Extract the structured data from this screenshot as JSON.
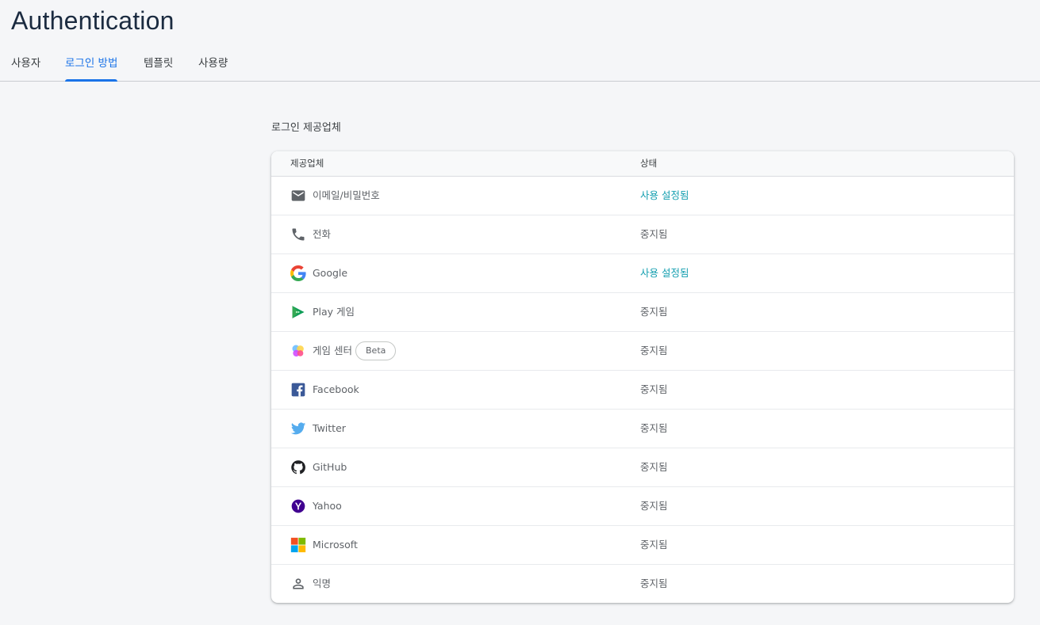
{
  "page": {
    "title": "Authentication"
  },
  "tabs": [
    {
      "label": "사용자",
      "active": false
    },
    {
      "label": "로그인 방법",
      "active": true
    },
    {
      "label": "템플릿",
      "active": false
    },
    {
      "label": "사용량",
      "active": false
    }
  ],
  "providers_section": {
    "title": "로그인 제공업체",
    "columns": {
      "provider": "제공업체",
      "status": "상태"
    },
    "rows": [
      {
        "name": "이메일/비밀번호",
        "icon": "email-icon",
        "status": "사용 설정됨",
        "enabled": true
      },
      {
        "name": "전화",
        "icon": "phone-icon",
        "status": "중지됨",
        "enabled": false
      },
      {
        "name": "Google",
        "icon": "google-icon",
        "status": "사용 설정됨",
        "enabled": true
      },
      {
        "name": "Play 게임",
        "icon": "play-games-icon",
        "status": "중지됨",
        "enabled": false
      },
      {
        "name": "게임 센터",
        "icon": "game-center-icon",
        "status": "중지됨",
        "enabled": false,
        "badge": "Beta"
      },
      {
        "name": "Facebook",
        "icon": "facebook-icon",
        "status": "중지됨",
        "enabled": false
      },
      {
        "name": "Twitter",
        "icon": "twitter-icon",
        "status": "중지됨",
        "enabled": false
      },
      {
        "name": "GitHub",
        "icon": "github-icon",
        "status": "중지됨",
        "enabled": false
      },
      {
        "name": "Yahoo",
        "icon": "yahoo-icon",
        "status": "중지됨",
        "enabled": false
      },
      {
        "name": "Microsoft",
        "icon": "microsoft-icon",
        "status": "중지됨",
        "enabled": false
      },
      {
        "name": "익명",
        "icon": "anonymous-icon",
        "status": "중지됨",
        "enabled": false
      }
    ]
  },
  "colors": {
    "accent": "#1a73e8",
    "enabled_status": "#129eaf",
    "disabled_status": "#5f6368"
  }
}
